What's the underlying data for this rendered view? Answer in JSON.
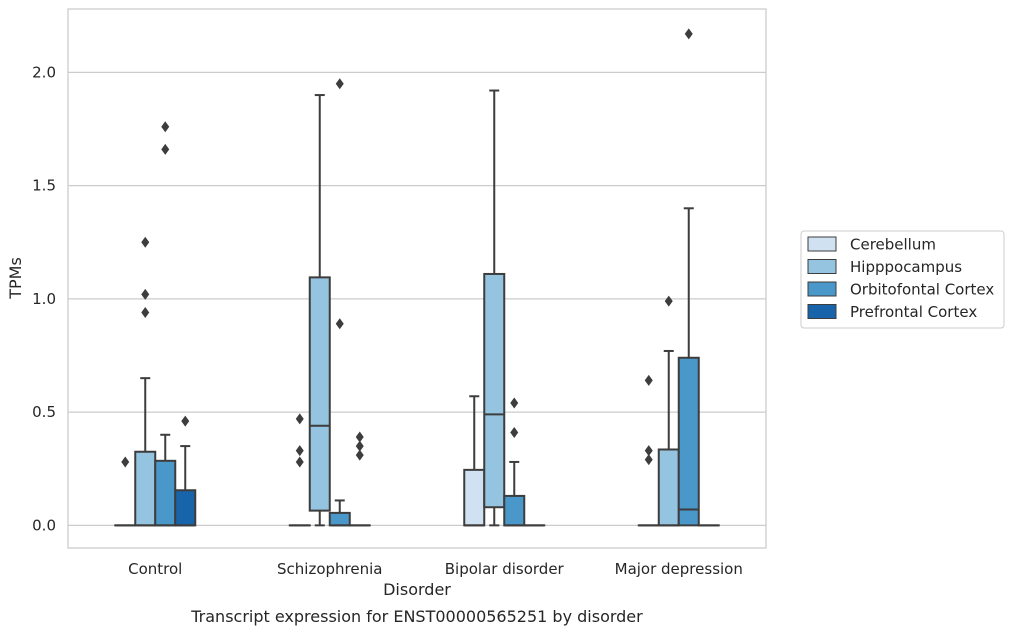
{
  "caption": "Transcript expression for ENST00000565251 by disorder",
  "chart_data": {
    "type": "box",
    "xlabel": "Disorder",
    "ylabel": "TPMs",
    "ylim": [
      -0.1,
      2.28
    ],
    "yticks": [
      0.0,
      0.5,
      1.0,
      1.5,
      2.0
    ],
    "ytick_labels": [
      "0.0",
      "0.5",
      "1.0",
      "1.5",
      "2.0"
    ],
    "grid": "horizontal",
    "legend_position": "right",
    "categories": [
      "Control",
      "Schizophrenia",
      "Bipolar disorder",
      "Major depression"
    ],
    "series": [
      {
        "name": "Cerebellum",
        "color": "#d0e1f2",
        "boxes": [
          {
            "q1": 0,
            "median": 0,
            "q3": 0,
            "whisker_low": 0,
            "whisker_high": 0,
            "outliers": [
              0.28
            ]
          },
          {
            "q1": 0,
            "median": 0,
            "q3": 0,
            "whisker_low": 0,
            "whisker_high": 0,
            "outliers": [
              0.28,
              0.33,
              0.47
            ]
          },
          {
            "q1": 0,
            "median": 0,
            "q3": 0.245,
            "whisker_low": 0,
            "whisker_high": 0.57,
            "outliers": []
          },
          {
            "q1": 0,
            "median": 0,
            "q3": 0,
            "whisker_low": 0,
            "whisker_high": 0,
            "outliers": [
              0.29,
              0.33,
              0.64
            ]
          }
        ]
      },
      {
        "name": "Hipppocampus",
        "color": "#94c4df",
        "boxes": [
          {
            "q1": 0,
            "median": 0,
            "q3": 0.325,
            "whisker_low": 0,
            "whisker_high": 0.65,
            "outliers": [
              0.94,
              1.02,
              1.25
            ]
          },
          {
            "q1": 0.065,
            "median": 0.44,
            "q3": 1.095,
            "whisker_low": 0,
            "whisker_high": 1.9,
            "outliers": []
          },
          {
            "q1": 0.08,
            "median": 0.49,
            "q3": 1.11,
            "whisker_low": 0,
            "whisker_high": 1.92,
            "outliers": []
          },
          {
            "q1": 0,
            "median": 0,
            "q3": 0.335,
            "whisker_low": 0,
            "whisker_high": 0.77,
            "outliers": [
              0.99
            ]
          }
        ]
      },
      {
        "name": "Orbitofontal Cortex",
        "color": "#4a98c9",
        "boxes": [
          {
            "q1": 0,
            "median": 0,
            "q3": 0.285,
            "whisker_low": 0,
            "whisker_high": 0.4,
            "outliers": [
              1.66,
              1.76
            ]
          },
          {
            "q1": 0,
            "median": 0,
            "q3": 0.055,
            "whisker_low": 0,
            "whisker_high": 0.11,
            "outliers": [
              0.89,
              1.95
            ]
          },
          {
            "q1": 0,
            "median": 0,
            "q3": 0.13,
            "whisker_low": 0,
            "whisker_high": 0.28,
            "outliers": [
              0.41,
              0.54
            ]
          },
          {
            "q1": 0,
            "median": 0.07,
            "q3": 0.74,
            "whisker_low": 0,
            "whisker_high": 1.4,
            "outliers": [
              2.17
            ]
          }
        ]
      },
      {
        "name": "Prefrontal Cortex",
        "color": "#1764ab",
        "boxes": [
          {
            "q1": 0,
            "median": 0,
            "q3": 0.155,
            "whisker_low": 0,
            "whisker_high": 0.35,
            "outliers": [
              0.46
            ]
          },
          {
            "q1": 0,
            "median": 0,
            "q3": 0,
            "whisker_low": 0,
            "whisker_high": 0,
            "outliers": [
              0.31,
              0.35,
              0.39
            ]
          },
          {
            "q1": 0,
            "median": 0,
            "q3": 0,
            "whisker_low": 0,
            "whisker_high": 0,
            "outliers": []
          },
          {
            "q1": 0,
            "median": 0,
            "q3": 0,
            "whisker_low": 0,
            "whisker_high": 0,
            "outliers": []
          }
        ]
      }
    ]
  }
}
